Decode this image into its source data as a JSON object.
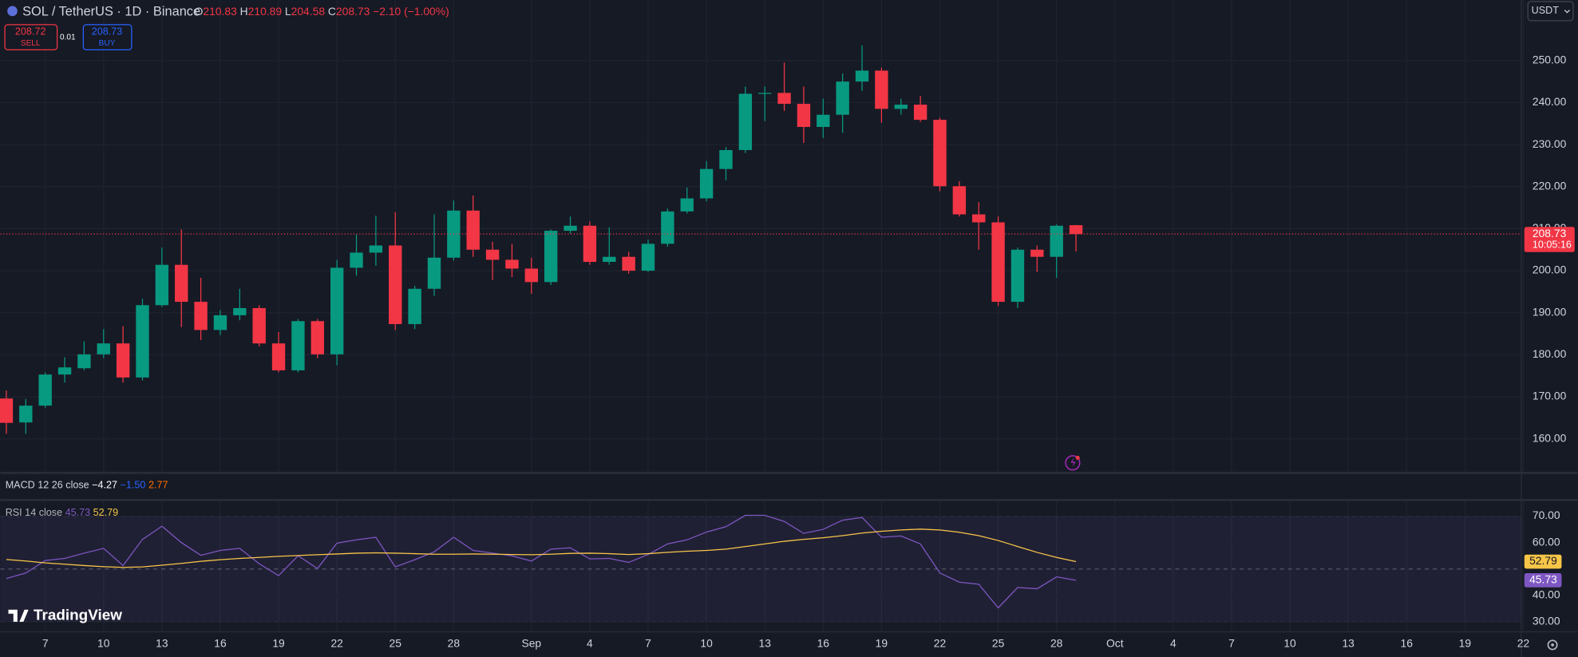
{
  "chart_data": {
    "type": "candlestick",
    "title": "SOL / TetherUS · 1D · Binance",
    "ohlc_keys": [
      "O",
      "H",
      "L",
      "C"
    ],
    "change_label": "−2.10 (−1.00%)",
    "sell": {
      "price": 208.72,
      "label": "SELL"
    },
    "spread": 0.01,
    "buy": {
      "price": 208.73,
      "label": "BUY"
    },
    "currency": "USDT",
    "countdown": "10:05:16",
    "up_color": "#089981",
    "down_color": "#f23645",
    "open": [
      169.6,
      163.9,
      167.9,
      175.3,
      176.8,
      180.1,
      182.7,
      174.6,
      191.8,
      201.4,
      192.6,
      185.9,
      189.4,
      191.1,
      182.7,
      176.3,
      188.0,
      180.1,
      200.7,
      204.3,
      206.0,
      187.3,
      195.7,
      203.1,
      214.3,
      205.0,
      202.6,
      200.5,
      197.3,
      209.5,
      210.7,
      202.1,
      203.3,
      200.0,
      206.4,
      214.1,
      217.2,
      224.2,
      228.7,
      242.1,
      242.3,
      239.7,
      234.2,
      237.1,
      245.0,
      247.6,
      238.5,
      239.5,
      235.9,
      220.1,
      213.4,
      211.5,
      192.6,
      205.0,
      203.3,
      210.83
    ],
    "high": [
      171.5,
      169.5,
      175.8,
      179.4,
      183.2,
      186.1,
      186.8,
      193.3,
      205.5,
      209.8,
      198.3,
      190.6,
      195.7,
      191.8,
      185.4,
      188.5,
      188.5,
      202.6,
      208.6,
      213.1,
      213.9,
      196.4,
      213.4,
      216.7,
      217.9,
      206.9,
      206.4,
      203.1,
      209.8,
      212.9,
      211.7,
      210.3,
      204.5,
      207.4,
      214.8,
      219.8,
      226.1,
      229.4,
      243.8,
      243.8,
      249.5,
      243.8,
      240.9,
      246.9,
      253.6,
      248.3,
      240.9,
      241.6,
      236.4,
      221.3,
      216.3,
      212.9,
      205.5,
      206.0,
      211.0,
      210.89
    ],
    "low": [
      161.2,
      161.2,
      167.4,
      173.4,
      176.3,
      179.2,
      173.4,
      173.9,
      191.4,
      186.6,
      183.5,
      184.7,
      188.2,
      182.0,
      175.8,
      175.8,
      179.2,
      177.5,
      198.8,
      201.2,
      185.9,
      186.1,
      194.0,
      202.4,
      203.3,
      197.8,
      198.5,
      194.5,
      196.6,
      208.8,
      201.4,
      201.4,
      199.3,
      199.7,
      205.7,
      213.6,
      216.5,
      221.5,
      228.0,
      235.6,
      238.0,
      230.4,
      231.6,
      232.8,
      242.8,
      235.2,
      237.1,
      235.4,
      218.9,
      212.9,
      205.0,
      191.6,
      191.1,
      199.7,
      198.3,
      204.58
    ],
    "close": [
      163.8,
      167.9,
      175.3,
      177.0,
      180.1,
      182.7,
      174.6,
      191.8,
      201.4,
      192.6,
      185.9,
      189.4,
      191.1,
      182.7,
      176.3,
      188.0,
      180.1,
      200.7,
      204.3,
      206.0,
      187.3,
      195.7,
      203.1,
      214.3,
      205.0,
      202.6,
      200.5,
      197.3,
      209.5,
      210.7,
      202.1,
      203.3,
      200.0,
      206.4,
      214.1,
      217.2,
      224.2,
      228.7,
      242.1,
      242.3,
      239.7,
      234.2,
      237.1,
      245.0,
      247.6,
      238.5,
      239.5,
      235.9,
      220.1,
      213.4,
      211.5,
      192.6,
      205.0,
      203.3,
      210.7,
      208.73
    ],
    "ylim": [
      151.9,
      264.4
    ],
    "yticks": [
      {
        "value": 160,
        "label": "160.00"
      },
      {
        "value": 170,
        "label": "170.00"
      },
      {
        "value": 180,
        "label": "180.00"
      },
      {
        "value": 190,
        "label": "190.00"
      },
      {
        "value": 200,
        "label": "200.00"
      },
      {
        "value": 210,
        "label": "210.00"
      },
      {
        "value": 220,
        "label": "220.00"
      },
      {
        "value": 230,
        "label": "230.00"
      },
      {
        "value": 240,
        "label": "240.00"
      },
      {
        "value": 250,
        "label": "250.00"
      }
    ],
    "xlim": [
      -0.31,
      77.9
    ],
    "xticks": [
      {
        "value": 2,
        "label": "7"
      },
      {
        "value": 5,
        "label": "10"
      },
      {
        "value": 8,
        "label": "13"
      },
      {
        "value": 11,
        "label": "16"
      },
      {
        "value": 14,
        "label": "19"
      },
      {
        "value": 17,
        "label": "22"
      },
      {
        "value": 20,
        "label": "25"
      },
      {
        "value": 23,
        "label": "28"
      },
      {
        "value": 27,
        "label": "Sep"
      },
      {
        "value": 30,
        "label": "4"
      },
      {
        "value": 33,
        "label": "7"
      },
      {
        "value": 36,
        "label": "10"
      },
      {
        "value": 39,
        "label": "13"
      },
      {
        "value": 42,
        "label": "16"
      },
      {
        "value": 45,
        "label": "19"
      },
      {
        "value": 48,
        "label": "22"
      },
      {
        "value": 51,
        "label": "25"
      },
      {
        "value": 54,
        "label": "28"
      },
      {
        "value": 57,
        "label": "Oct"
      },
      {
        "value": 60,
        "label": "4"
      },
      {
        "value": 63,
        "label": "7"
      },
      {
        "value": 66,
        "label": "10"
      },
      {
        "value": 69,
        "label": "13"
      },
      {
        "value": 72,
        "label": "16"
      },
      {
        "value": 75,
        "label": "19"
      },
      {
        "value": 78,
        "label": "22"
      }
    ],
    "grid": true,
    "macd": {
      "title": "MACD 12 26 close",
      "readings": [
        "−4.27",
        "−1.50",
        "2.77"
      ]
    },
    "rsi": {
      "title": "RSI 14 close",
      "ylim": [
        26.2,
        76.1
      ],
      "yticks": [
        {
          "value": 30,
          "label": "30.00"
        },
        {
          "value": 40,
          "label": "40.00"
        },
        {
          "value": 60,
          "label": "60.00"
        },
        {
          "value": 70,
          "label": "70.00"
        }
      ],
      "band": [
        30,
        70
      ],
      "midline": 50,
      "series": [
        {
          "color": "#7e57c2",
          "values": [
            46.4,
            48.5,
            53.2,
            54.0,
            56.0,
            57.8,
            51.3,
            61.2,
            66.2,
            60.0,
            55.2,
            57.0,
            57.8,
            52.0,
            47.5,
            55.0,
            50.2,
            59.8,
            61.0,
            62.0,
            50.8,
            53.5,
            56.5,
            62.0,
            57.0,
            56.0,
            55.0,
            53.0,
            57.5,
            58.0,
            53.8,
            54.0,
            52.5,
            55.5,
            59.5,
            61.0,
            64.0,
            66.0,
            70.3,
            70.3,
            68.0,
            63.5,
            65.0,
            68.5,
            69.5,
            62.0,
            62.5,
            59.5,
            48.5,
            45.0,
            44.2,
            35.3,
            43.0,
            42.5,
            47.0,
            45.73
          ]
        },
        {
          "color": "#f7c548",
          "values": [
            53.6,
            53.0,
            52.3,
            51.8,
            51.3,
            50.9,
            50.6,
            50.8,
            51.4,
            52.1,
            52.9,
            53.5,
            54.0,
            54.4,
            54.8,
            55.1,
            55.4,
            55.7,
            56.0,
            56.1,
            56.0,
            55.8,
            55.6,
            55.6,
            55.7,
            55.6,
            55.5,
            55.4,
            55.6,
            55.9,
            56.0,
            55.8,
            55.5,
            55.8,
            56.3,
            56.7,
            57.0,
            57.5,
            58.5,
            59.5,
            60.5,
            61.2,
            61.8,
            62.6,
            63.6,
            64.3,
            64.8,
            65.1,
            64.8,
            63.9,
            62.6,
            60.8,
            58.5,
            56.3,
            54.4,
            52.79
          ]
        }
      ]
    },
    "watermark": "TradingView"
  }
}
